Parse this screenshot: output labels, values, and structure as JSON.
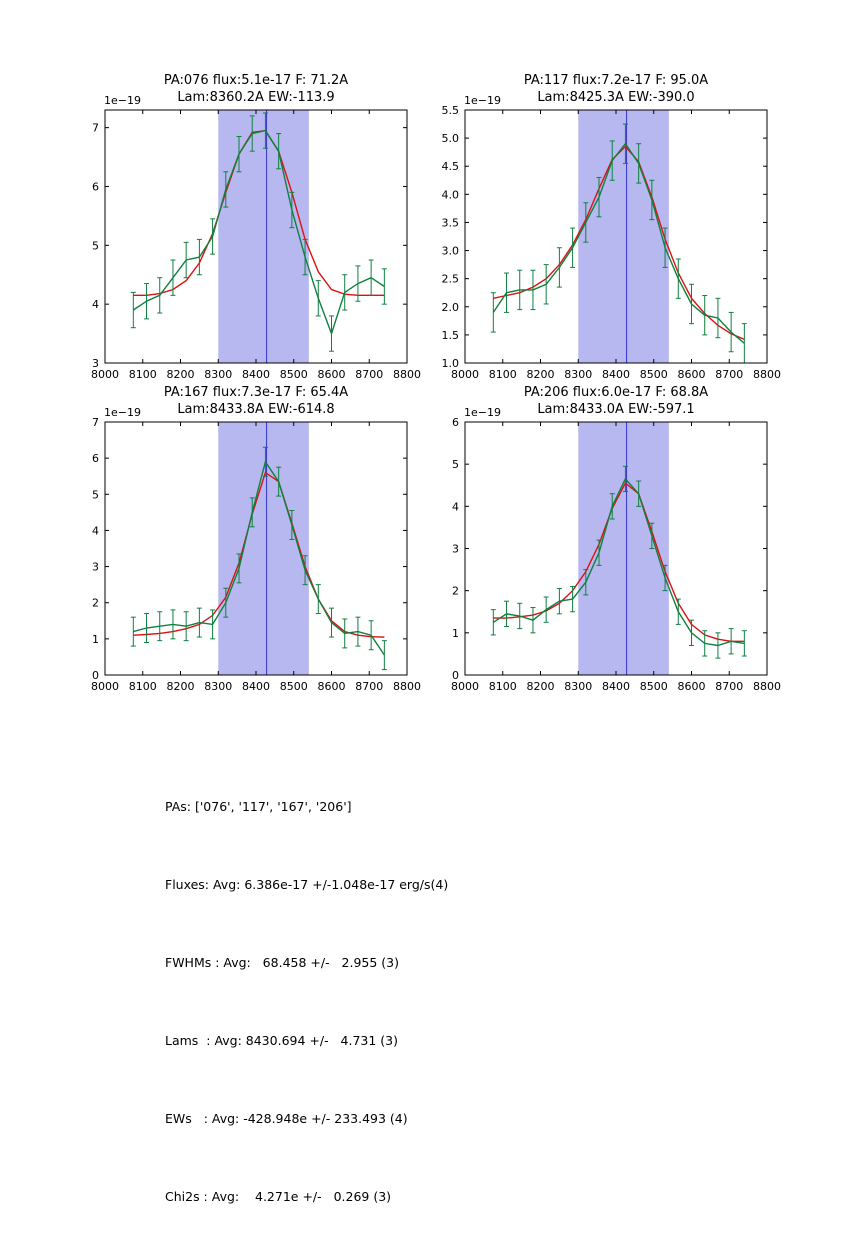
{
  "colors": {
    "background": "#ffffff",
    "frame": "#000000",
    "data_series": "#0f8040",
    "fit": "#dd1111",
    "band": "#b8b8f0",
    "marker_line": "#3333cc"
  },
  "chart_shared": {
    "type": "line",
    "xlabel": "",
    "ylabel": "",
    "xlim": [
      8000,
      8800
    ],
    "xticks": [
      8000,
      8100,
      8200,
      8300,
      8400,
      8500,
      8600,
      8700,
      8800
    ],
    "xtick_labels": [
      "8000",
      "8100",
      "8200",
      "8300",
      "8400",
      "8500",
      "8600",
      "8700",
      "8800"
    ],
    "band": [
      8300,
      8540
    ],
    "vline": 8428,
    "offset_label": "1e−19",
    "x": [
      8075,
      8110,
      8145,
      8180,
      8215,
      8250,
      8285,
      8320,
      8355,
      8390,
      8425,
      8460,
      8495,
      8530,
      8565,
      8600,
      8635,
      8670,
      8705,
      8740
    ]
  },
  "chart_data": [
    {
      "title_line1": "PA:076 flux:5.1e-17 F: 71.2A",
      "title_line2": "Lam:8360.2A EW:-113.9",
      "ylim": [
        3,
        7.3
      ],
      "yticks": [
        3,
        4,
        5,
        6,
        7
      ],
      "ytick_labels": [
        "3",
        "4",
        "5",
        "6",
        "7"
      ],
      "series": [
        {
          "name": "observed-spectrum",
          "color_key": "data_series",
          "err": 0.3,
          "values": [
            3.9,
            4.05,
            4.15,
            4.45,
            4.75,
            4.8,
            5.15,
            5.95,
            6.55,
            6.9,
            6.95,
            6.6,
            5.6,
            4.8,
            4.1,
            3.5,
            4.2,
            4.35,
            4.45,
            4.3
          ]
        },
        {
          "name": "gaussian-fit",
          "color_key": "fit",
          "values": [
            4.15,
            4.15,
            4.18,
            4.25,
            4.4,
            4.7,
            5.2,
            5.9,
            6.55,
            6.92,
            6.95,
            6.6,
            5.9,
            5.1,
            4.55,
            4.25,
            4.17,
            4.15,
            4.15,
            4.15
          ]
        }
      ]
    },
    {
      "title_line1": "PA:117 flux:7.2e-17 F: 95.0A",
      "title_line2": "Lam:8425.3A EW:-390.0",
      "ylim": [
        1.0,
        5.5
      ],
      "yticks": [
        1.0,
        1.5,
        2.0,
        2.5,
        3.0,
        3.5,
        4.0,
        4.5,
        5.0,
        5.5
      ],
      "ytick_labels": [
        "1.0",
        "1.5",
        "2.0",
        "2.5",
        "3.0",
        "3.5",
        "4.0",
        "4.5",
        "5.0",
        "5.5"
      ],
      "series": [
        {
          "name": "observed-spectrum",
          "color_key": "data_series",
          "err": 0.35,
          "values": [
            1.9,
            2.25,
            2.3,
            2.3,
            2.4,
            2.7,
            3.05,
            3.5,
            3.95,
            4.6,
            4.9,
            4.55,
            3.9,
            3.05,
            2.5,
            2.05,
            1.85,
            1.8,
            1.55,
            1.35
          ]
        },
        {
          "name": "gaussian-fit",
          "color_key": "fit",
          "values": [
            2.15,
            2.2,
            2.25,
            2.35,
            2.5,
            2.75,
            3.1,
            3.55,
            4.1,
            4.62,
            4.85,
            4.58,
            3.95,
            3.2,
            2.6,
            2.15,
            1.88,
            1.67,
            1.52,
            1.42
          ]
        }
      ]
    },
    {
      "title_line1": "PA:167 flux:7.3e-17 F: 65.4A",
      "title_line2": "Lam:8433.8A EW:-614.8",
      "ylim": [
        0,
        7
      ],
      "yticks": [
        0,
        1,
        2,
        3,
        4,
        5,
        6,
        7
      ],
      "ytick_labels": [
        "0",
        "1",
        "2",
        "3",
        "4",
        "5",
        "6",
        "7"
      ],
      "series": [
        {
          "name": "observed-spectrum",
          "color_key": "data_series",
          "err": 0.4,
          "values": [
            1.2,
            1.3,
            1.35,
            1.4,
            1.35,
            1.45,
            1.4,
            2.0,
            2.95,
            4.5,
            5.9,
            5.35,
            4.15,
            2.9,
            2.1,
            1.45,
            1.15,
            1.2,
            1.1,
            0.55
          ]
        },
        {
          "name": "gaussian-fit",
          "color_key": "fit",
          "values": [
            1.1,
            1.12,
            1.15,
            1.2,
            1.28,
            1.4,
            1.65,
            2.15,
            3.1,
            4.45,
            5.6,
            5.35,
            4.2,
            3.0,
            2.1,
            1.5,
            1.2,
            1.1,
            1.06,
            1.05
          ]
        }
      ]
    },
    {
      "title_line1": "PA:206 flux:6.0e-17 F: 68.8A",
      "title_line2": "Lam:8433.0A EW:-597.1",
      "ylim": [
        0,
        6
      ],
      "yticks": [
        0,
        1,
        2,
        3,
        4,
        5,
        6
      ],
      "ytick_labels": [
        "0",
        "1",
        "2",
        "3",
        "4",
        "5",
        "6"
      ],
      "series": [
        {
          "name": "observed-spectrum",
          "color_key": "data_series",
          "err": 0.3,
          "values": [
            1.25,
            1.45,
            1.4,
            1.3,
            1.55,
            1.75,
            1.8,
            2.2,
            2.9,
            4.0,
            4.65,
            4.3,
            3.3,
            2.3,
            1.5,
            1.0,
            0.75,
            0.7,
            0.8,
            0.75
          ]
        },
        {
          "name": "gaussian-fit",
          "color_key": "fit",
          "values": [
            1.35,
            1.35,
            1.38,
            1.42,
            1.52,
            1.7,
            2.0,
            2.45,
            3.1,
            3.95,
            4.55,
            4.3,
            3.4,
            2.45,
            1.7,
            1.2,
            0.95,
            0.85,
            0.8,
            0.8
          ]
        }
      ]
    }
  ],
  "summary": {
    "lines": [
      "PAs: ['076', '117', '167', '206']",
      "Fluxes: Avg: 6.386e-17 +/-1.048e-17 erg/s(4)",
      "FWHMs : Avg:   68.458 +/-   2.955 (3)",
      "Lams  : Avg: 8430.694 +/-   4.731 (3)",
      "EWs   : Avg: -428.948e +/- 233.493 (4)",
      "Chi2s : Avg:    4.271e +/-   0.269 (3)"
    ]
  }
}
